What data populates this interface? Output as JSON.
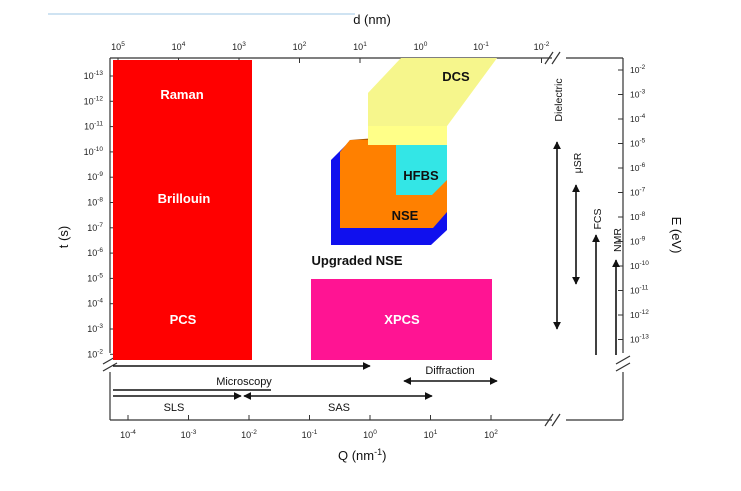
{
  "axes": {
    "top_label": "d (nm)",
    "bottom_label": "Q (nm",
    "bottom_label_sup": "-1",
    "bottom_label_end": ")",
    "left_label": "t (s)",
    "right_label": "E (eV)",
    "top_ticks": [
      {
        "base": "10",
        "exp": "5"
      },
      {
        "base": "10",
        "exp": "4"
      },
      {
        "base": "10",
        "exp": "3"
      },
      {
        "base": "10",
        "exp": "2"
      },
      {
        "base": "10",
        "exp": "1"
      },
      {
        "base": "10",
        "exp": "0"
      },
      {
        "base": "10",
        "exp": "-1"
      },
      {
        "base": "10",
        "exp": "-2"
      }
    ],
    "bottom_ticks": [
      {
        "base": "10",
        "exp": "-4"
      },
      {
        "base": "10",
        "exp": "-3"
      },
      {
        "base": "10",
        "exp": "-2"
      },
      {
        "base": "10",
        "exp": "-1"
      },
      {
        "base": "10",
        "exp": "0"
      },
      {
        "base": "10",
        "exp": "1"
      },
      {
        "base": "10",
        "exp": "2"
      }
    ],
    "left_ticks": [
      {
        "base": "10",
        "exp": "-13"
      },
      {
        "base": "10",
        "exp": "-12"
      },
      {
        "base": "10",
        "exp": "-11"
      },
      {
        "base": "10",
        "exp": "-10"
      },
      {
        "base": "10",
        "exp": "-9"
      },
      {
        "base": "10",
        "exp": "-8"
      },
      {
        "base": "10",
        "exp": "-7"
      },
      {
        "base": "10",
        "exp": "-6"
      },
      {
        "base": "10",
        "exp": "-5"
      },
      {
        "base": "10",
        "exp": "-4"
      },
      {
        "base": "10",
        "exp": "-3"
      },
      {
        "base": "10",
        "exp": "-2"
      }
    ],
    "right_ticks": [
      {
        "base": "10",
        "exp": "-2"
      },
      {
        "base": "10",
        "exp": "-3"
      },
      {
        "base": "10",
        "exp": "-4"
      },
      {
        "base": "10",
        "exp": "-5"
      },
      {
        "base": "10",
        "exp": "-6"
      },
      {
        "base": "10",
        "exp": "-7"
      },
      {
        "base": "10",
        "exp": "-8"
      },
      {
        "base": "10",
        "exp": "-9"
      },
      {
        "base": "10",
        "exp": "-10"
      },
      {
        "base": "10",
        "exp": "-11"
      },
      {
        "base": "10",
        "exp": "-12"
      },
      {
        "base": "10",
        "exp": "-13"
      }
    ]
  },
  "regions": {
    "light_scattering": {
      "labels": [
        "Raman",
        "Brillouin",
        "PCS"
      ],
      "color": "#ff0000"
    },
    "dcs": {
      "label": "DCS",
      "color": "#ffff88"
    },
    "hfbs": {
      "label": "HFBS",
      "color": "#33e6e6"
    },
    "nse": {
      "label": "NSE",
      "color": "#ff8000"
    },
    "upgraded_nse": {
      "label": "Upgraded NSE",
      "color": "#1010ee"
    },
    "xpcs": {
      "label": "XPCS",
      "color": "#ff1493"
    }
  },
  "vertical_ranges": [
    "Dielectric",
    "μSR",
    "FCS",
    "NMR"
  ],
  "horizontal_ranges": [
    "Microscopy",
    "Diffraction",
    "SLS",
    "SAS"
  ]
}
